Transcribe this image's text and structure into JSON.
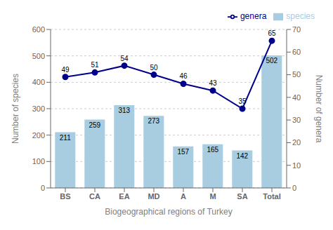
{
  "chart_data": {
    "type": "bar",
    "categories": [
      "BS",
      "CA",
      "EA",
      "MD",
      "A",
      "M",
      "SA",
      "Total"
    ],
    "xlabel": "Biogeographical regions of Turkey",
    "ylabel": "Number of species",
    "y2label": "Number of genera",
    "ylim": [
      0,
      600
    ],
    "yticks": [
      0,
      100,
      200,
      300,
      400,
      500,
      600
    ],
    "y2lim": [
      0,
      70
    ],
    "y2ticks": [
      0,
      10,
      20,
      30,
      40,
      50,
      60,
      70
    ],
    "grid": true,
    "legend": "upper right",
    "data_labels": true,
    "series": [
      {
        "name": "species",
        "type": "bar",
        "color": "#a8cce0",
        "values": [
          211,
          259,
          313,
          273,
          157,
          165,
          142,
          502
        ]
      },
      {
        "name": "genera",
        "type": "line",
        "axis": "y2",
        "color": "#00008b",
        "marker": "circle",
        "values": [
          49,
          51,
          54,
          50,
          46,
          43,
          35,
          65
        ]
      }
    ]
  }
}
